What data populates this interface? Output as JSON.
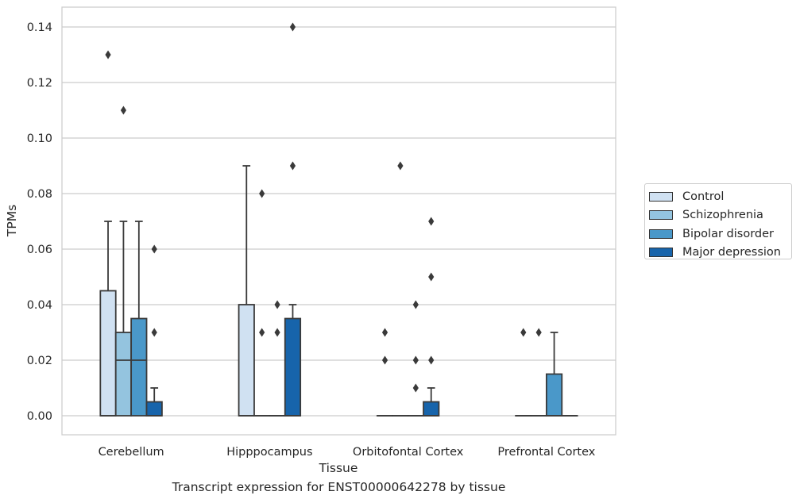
{
  "chart_data": {
    "type": "boxplot",
    "xlabel": "Tissue",
    "ylabel": "TPMs",
    "caption": "Transcript expression for ENST00000642278 by tissue",
    "ylim": [
      -0.007,
      0.147
    ],
    "yticks": [
      0.0,
      0.02,
      0.04,
      0.06,
      0.08,
      0.1,
      0.12,
      0.14
    ],
    "ytick_labels": [
      "0.00",
      "0.02",
      "0.04",
      "0.06",
      "0.08",
      "0.10",
      "0.12",
      "0.14"
    ],
    "grid": "horizontal",
    "legend_position": "right",
    "categories": [
      "Cerebellum",
      "Hipppocampus",
      "Orbitofontal Cortex",
      "Prefrontal Cortex"
    ],
    "series": [
      {
        "name": "Control",
        "color": "#d0e1f2",
        "boxes": [
          {
            "min": 0.0,
            "q1": 0.0,
            "median": 0.0,
            "q3": 0.045,
            "max": 0.07,
            "outliers": [
              0.13
            ]
          },
          {
            "min": 0.0,
            "q1": 0.0,
            "median": 0.0,
            "q3": 0.04,
            "max": 0.09,
            "outliers": []
          },
          {
            "min": 0.0,
            "q1": 0.0,
            "median": 0.0,
            "q3": 0.0,
            "max": 0.0,
            "outliers": [
              0.03,
              0.02
            ]
          },
          {
            "min": 0.0,
            "q1": 0.0,
            "median": 0.0,
            "q3": 0.0,
            "max": 0.0,
            "outliers": [
              0.03
            ]
          }
        ]
      },
      {
        "name": "Schizophrenia",
        "color": "#94c4df",
        "boxes": [
          {
            "min": 0.0,
            "q1": 0.0,
            "median": 0.02,
            "q3": 0.03,
            "max": 0.07,
            "outliers": [
              0.11
            ]
          },
          {
            "min": 0.0,
            "q1": 0.0,
            "median": 0.0,
            "q3": 0.0,
            "max": 0.0,
            "outliers": [
              0.08,
              0.03
            ]
          },
          {
            "min": 0.0,
            "q1": 0.0,
            "median": 0.0,
            "q3": 0.0,
            "max": 0.0,
            "outliers": [
              0.09
            ]
          },
          {
            "min": 0.0,
            "q1": 0.0,
            "median": 0.0,
            "q3": 0.0,
            "max": 0.0,
            "outliers": [
              0.03
            ]
          }
        ]
      },
      {
        "name": "Bipolar disorder",
        "color": "#4a98c9",
        "boxes": [
          {
            "min": 0.0,
            "q1": 0.0,
            "median": 0.02,
            "q3": 0.035,
            "max": 0.07,
            "outliers": []
          },
          {
            "min": 0.0,
            "q1": 0.0,
            "median": 0.0,
            "q3": 0.0,
            "max": 0.0,
            "outliers": [
              0.04,
              0.03
            ]
          },
          {
            "min": 0.0,
            "q1": 0.0,
            "median": 0.0,
            "q3": 0.0,
            "max": 0.0,
            "outliers": [
              0.04,
              0.02,
              0.01
            ]
          },
          {
            "min": 0.0,
            "q1": 0.0,
            "median": 0.0,
            "q3": 0.015,
            "max": 0.03,
            "outliers": []
          }
        ]
      },
      {
        "name": "Major depression",
        "color": "#1764ab",
        "boxes": [
          {
            "min": 0.0,
            "q1": 0.0,
            "median": 0.0,
            "q3": 0.005,
            "max": 0.01,
            "outliers": [
              0.06,
              0.03
            ]
          },
          {
            "min": 0.0,
            "q1": 0.0,
            "median": 0.0,
            "q3": 0.035,
            "max": 0.04,
            "outliers": [
              0.14,
              0.09
            ]
          },
          {
            "min": 0.0,
            "q1": 0.0,
            "median": 0.0,
            "q3": 0.005,
            "max": 0.01,
            "outliers": [
              0.07,
              0.05,
              0.02
            ]
          },
          {
            "min": 0.0,
            "q1": 0.0,
            "median": 0.0,
            "q3": 0.0,
            "max": 0.0,
            "outliers": []
          }
        ]
      }
    ]
  }
}
